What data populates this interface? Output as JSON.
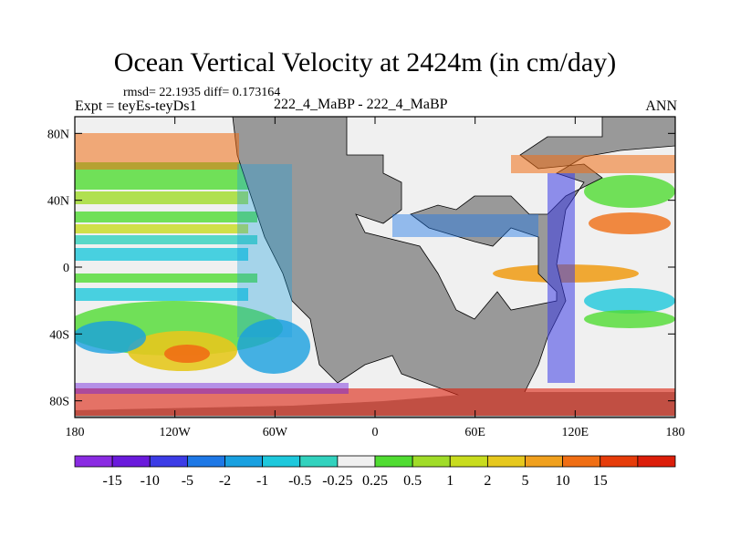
{
  "chart_data": {
    "type": "heatmap",
    "title": "Ocean Vertical Velocity at 2424m (in cm/day)",
    "stats_text": "rmsd= 22.1935 diff= 0.173164",
    "left_label": "Expt = teyEs-teyDs1",
    "center_label": "222_4_MaBP - 222_4_MaBP",
    "right_label": "ANN",
    "xlim": [
      -180,
      180
    ],
    "ylim": [
      -90,
      90
    ],
    "x_ticks": [
      {
        "value": -180,
        "label": "180"
      },
      {
        "value": -120,
        "label": "120W"
      },
      {
        "value": -60,
        "label": "60W"
      },
      {
        "value": 0,
        "label": "0"
      },
      {
        "value": 60,
        "label": "60E"
      },
      {
        "value": 120,
        "label": "120E"
      },
      {
        "value": 180,
        "label": "180"
      }
    ],
    "y_ticks": [
      {
        "value": 80,
        "label": "80N"
      },
      {
        "value": 40,
        "label": "40N"
      },
      {
        "value": 0,
        "label": "0"
      },
      {
        "value": -40,
        "label": "40S"
      },
      {
        "value": -80,
        "label": "80S"
      }
    ],
    "land_color": "#999999",
    "colorbar": {
      "colors": [
        "#8a2be2",
        "#6a1adc",
        "#3c3ce6",
        "#1e78e6",
        "#19a0e0",
        "#1ec8dc",
        "#32d2be",
        "#f0f0f0",
        "#50dc32",
        "#a0dc28",
        "#c8dc1e",
        "#e6c81e",
        "#f0a01e",
        "#f06e14",
        "#e63c0a",
        "#dc1e0a"
      ],
      "labels": [
        "-15",
        "-10",
        "-5",
        "-2",
        "-1",
        "-0.5",
        "-0.25",
        "0.25",
        "0.5",
        "1",
        "2",
        "5",
        "10",
        "15"
      ]
    }
  }
}
